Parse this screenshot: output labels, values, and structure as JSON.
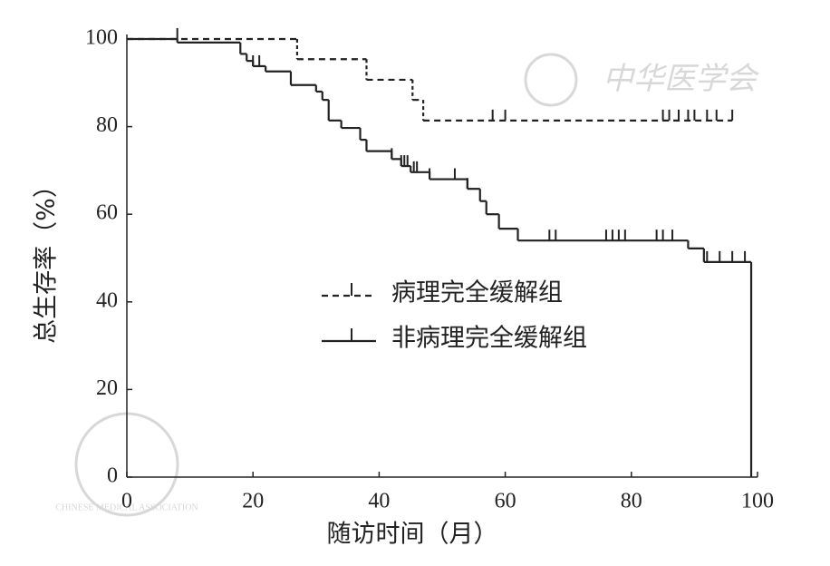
{
  "chart_data": {
    "type": "step",
    "xlabel": "随访时间（月）",
    "ylabel": "总生存率（%）",
    "xlim": [
      0,
      100
    ],
    "ylim": [
      0,
      100
    ],
    "xticks": [
      0,
      20,
      40,
      60,
      80,
      100
    ],
    "yticks": [
      0,
      20,
      40,
      60,
      80,
      100
    ],
    "legend": "center",
    "watermark": {
      "text": "中华医学会",
      "text_en": "CHINESE MEDICAL ASSOCIATION",
      "color": "#d8d8d8"
    },
    "series": [
      {
        "name": "病理完全缓解组",
        "color": "#222222",
        "dashed": true,
        "x": [
          0,
          27,
          38,
          45.3,
          47
        ],
        "values": [
          100,
          95.4,
          90.7,
          86.1,
          81.4
        ],
        "censored_x": [
          8,
          58,
          60,
          85,
          86,
          87.5,
          89,
          90,
          92,
          93.5,
          96
        ]
      },
      {
        "name": "非病理完全缓解组",
        "color": "#222222",
        "dashed": false,
        "x": [
          0,
          8,
          18,
          19,
          20,
          22,
          26,
          30,
          31,
          32,
          34,
          37,
          38,
          42,
          43.5,
          45,
          48,
          54,
          56,
          57,
          59,
          62,
          89,
          91.5,
          99
        ],
        "values": [
          100,
          99.2,
          96.6,
          95,
          93.8,
          92.6,
          89.5,
          88,
          86.1,
          81.4,
          79.7,
          77,
          74.4,
          72.6,
          71,
          69.6,
          68,
          65.8,
          63,
          60,
          56.7,
          54,
          52.2,
          49.1,
          0
        ],
        "censored_x": [
          20,
          21,
          38,
          42,
          43.5,
          44,
          44.5,
          45.5,
          46,
          48,
          52,
          54,
          67,
          68,
          76,
          77,
          78,
          79,
          84,
          85,
          86.5,
          92,
          94,
          96,
          98
        ]
      }
    ]
  }
}
